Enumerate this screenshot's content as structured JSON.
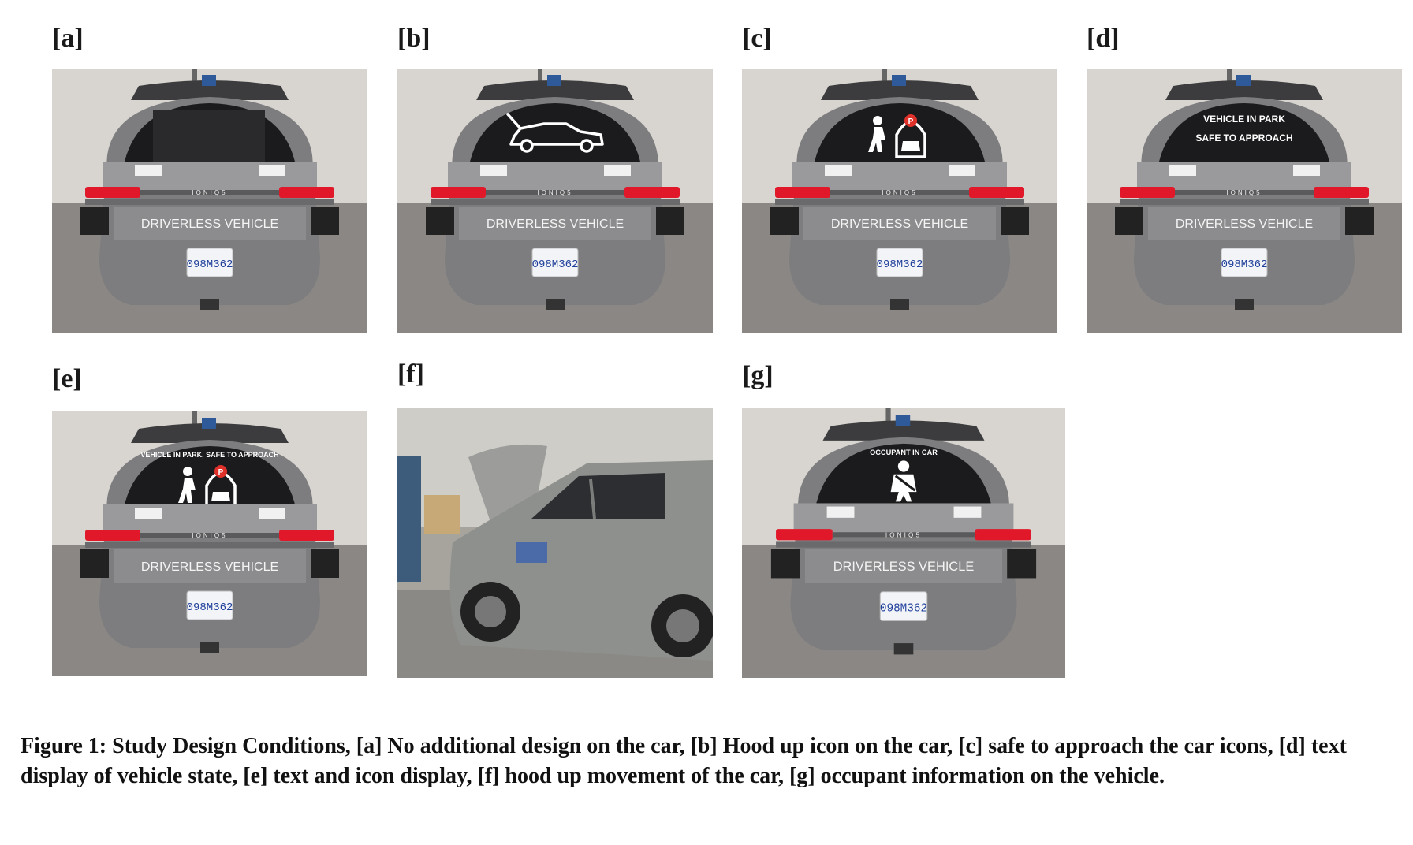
{
  "figure": {
    "panels": [
      {
        "id": "a",
        "label": "[a]",
        "screen_text": "",
        "icon": "none",
        "sign": "DRIVERLESS VEHICLE",
        "plate": "098M362",
        "brand": "IONIQ5"
      },
      {
        "id": "b",
        "label": "[b]",
        "screen_text": "",
        "icon": "hood-up-car-icon",
        "sign": "DRIVERLESS VEHICLE",
        "plate": "098M362",
        "brand": "IONIQ5"
      },
      {
        "id": "c",
        "label": "[c]",
        "screen_text": "",
        "icon": "pedestrian-and-parked-car-icon",
        "sign": "DRIVERLESS VEHICLE",
        "plate": "098M362",
        "brand": "IONIQ5",
        "park_letter": "P"
      },
      {
        "id": "d",
        "label": "[d]",
        "screen_text_line1": "VEHICLE IN PARK",
        "screen_text_line2": "SAFE TO APPROACH",
        "icon": "none",
        "sign": "DRIVERLESS VEHICLE",
        "plate": "098M362",
        "brand": "IONIQ5"
      },
      {
        "id": "e",
        "label": "[e]",
        "screen_text": "VEHICLE IN PARK, SAFE TO APPROACH",
        "icon": "pedestrian-and-parked-car-icon",
        "sign": "DRIVERLESS VEHICLE",
        "plate": "098M362",
        "brand": "IONIQ5",
        "park_letter": "P"
      },
      {
        "id": "f",
        "label": "[f]",
        "icon": "none"
      },
      {
        "id": "g",
        "label": "[g]",
        "screen_text": "OCCUPANT IN CAR",
        "icon": "seatbelt-icon",
        "sign": "DRIVERLESS VEHICLE",
        "plate": "098M362",
        "brand": "IONIQ5"
      }
    ],
    "caption": "Figure 1: Study Design Conditions, [a] No additional design on the car, [b] Hood up icon on the car, [c] safe to approach the car icons, [d] text display of vehicle state, [e] text and icon display, [f] hood up movement of the car, [g] occupant information on the vehicle."
  },
  "colors": {
    "taillight": "#e0182a",
    "screen": "#1b1b1d",
    "body": "#7d7d7f",
    "floor": "#8a8784",
    "wall": "#d8d5d0",
    "plate": "#f2f4f8",
    "plate_text": "#1f3f9a"
  }
}
